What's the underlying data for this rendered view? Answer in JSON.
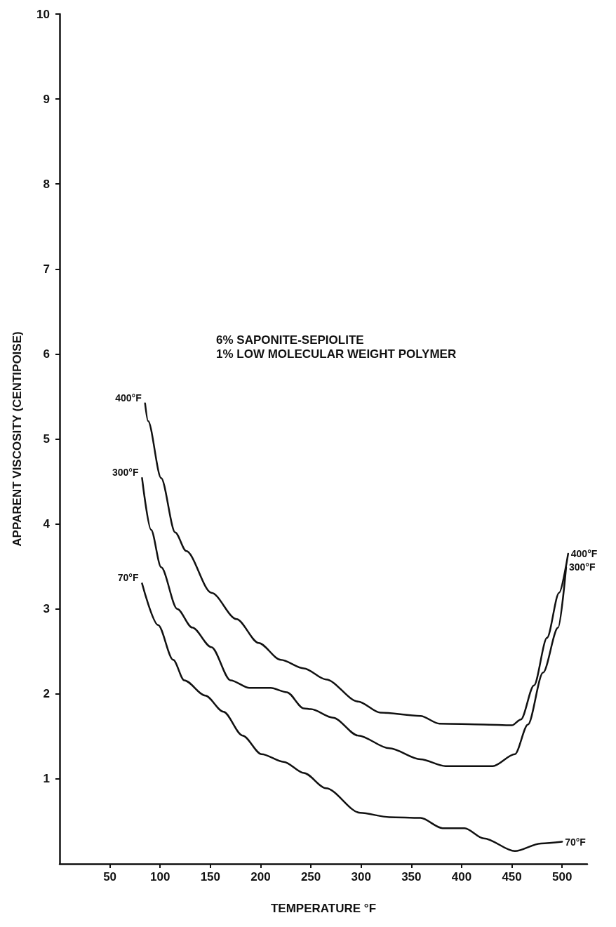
{
  "chart_data": {
    "type": "line",
    "xlabel": "TEMPERATURE °F",
    "ylabel": "APPARENT VISCOSITY (CENTIPOISE)",
    "annotations": [
      "6% SAPONITE-SEPIOLITE",
      "1% LOW MOLECULAR WEIGHT POLYMER"
    ],
    "xlim": [
      0,
      525
    ],
    "xticks": [
      50,
      100,
      150,
      200,
      250,
      300,
      350,
      400,
      450,
      500
    ],
    "ylim": [
      0,
      10
    ],
    "yticks": [
      1,
      2,
      3,
      4,
      5,
      6,
      7,
      8,
      9,
      10
    ],
    "grid": false,
    "marker": "none",
    "line_style": "solid",
    "series": [
      {
        "name": "400°F",
        "color": "#111111",
        "x": [
          85,
          88,
          101,
          115,
          126,
          151,
          176,
          198,
          220,
          243,
          265,
          297,
          319,
          359,
          378,
          422,
          450,
          459,
          472,
          485,
          497,
          506
        ],
        "values": [
          5.42,
          5.21,
          4.54,
          3.9,
          3.68,
          3.19,
          2.88,
          2.6,
          2.4,
          2.3,
          2.17,
          1.91,
          1.78,
          1.74,
          1.65,
          1.64,
          1.63,
          1.7,
          2.1,
          2.66,
          3.19,
          3.65
        ]
      },
      {
        "name": "300°F",
        "color": "#111111",
        "x": [
          82,
          91,
          101,
          117,
          132,
          151,
          170,
          189,
          210,
          226,
          243,
          250,
          272,
          297,
          328,
          359,
          384,
          431,
          453,
          466,
          481,
          496,
          504
        ],
        "values": [
          4.54,
          3.93,
          3.49,
          3.0,
          2.78,
          2.55,
          2.16,
          2.07,
          2.07,
          2.02,
          1.83,
          1.82,
          1.72,
          1.51,
          1.36,
          1.23,
          1.15,
          1.15,
          1.29,
          1.64,
          2.25,
          2.78,
          3.49
        ]
      },
      {
        "name": "70°F",
        "color": "#111111",
        "x": [
          82,
          98,
          113,
          124,
          145,
          163,
          182,
          201,
          223,
          243,
          265,
          299,
          328,
          359,
          381,
          403,
          422,
          453,
          479,
          500
        ],
        "values": [
          3.3,
          2.81,
          2.4,
          2.16,
          1.98,
          1.79,
          1.51,
          1.29,
          1.2,
          1.07,
          0.89,
          0.6,
          0.55,
          0.54,
          0.42,
          0.42,
          0.3,
          0.15,
          0.24,
          0.26
        ]
      }
    ]
  }
}
